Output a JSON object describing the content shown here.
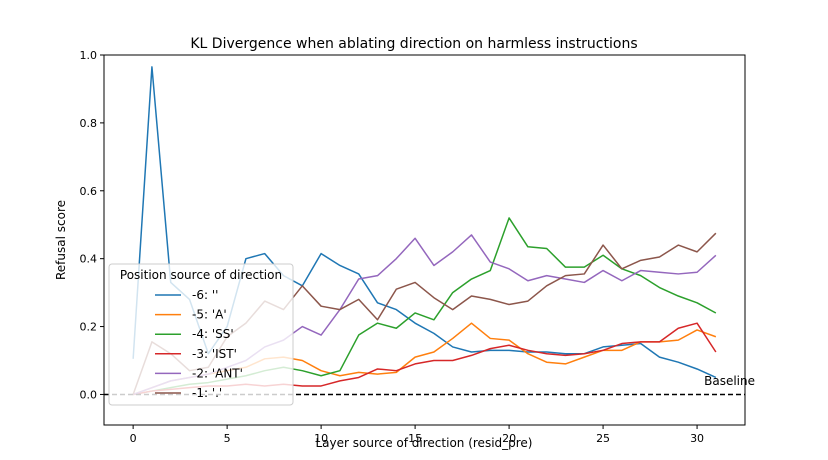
{
  "chart_data": {
    "type": "line",
    "title": "KL Divergence when ablating direction on harmless instructions",
    "xlabel": "Layer source of direction (resid_pre)",
    "ylabel": "Refusal score",
    "xlim": [
      -1.55,
      32.55
    ],
    "ylim": [
      -0.09,
      1.0
    ],
    "xticks": [
      0,
      5,
      10,
      15,
      20,
      25,
      30
    ],
    "xtick_labels": [
      "0",
      "5",
      "10",
      "15",
      "20",
      "25",
      "30"
    ],
    "yticks": [
      0.0,
      0.2,
      0.4,
      0.6,
      0.8,
      1.0
    ],
    "ytick_labels": [
      "0.0",
      "0.2",
      "0.4",
      "0.6",
      "0.8",
      "1.0"
    ],
    "grid": false,
    "legend": {
      "title": "Position source of direction",
      "placement": "lower-left"
    },
    "baseline": {
      "value": 0.0,
      "label": "Baseline",
      "style": "dashed",
      "color": "#000000"
    },
    "x": [
      0,
      1,
      2,
      3,
      4,
      5,
      6,
      7,
      8,
      9,
      10,
      11,
      12,
      13,
      14,
      15,
      16,
      17,
      18,
      19,
      20,
      21,
      22,
      23,
      24,
      25,
      26,
      27,
      28,
      29,
      30,
      31
    ],
    "series": [
      {
        "name": "-6: ''",
        "color": "#1f77b4",
        "values": [
          0.105,
          0.965,
          0.33,
          0.28,
          0.12,
          0.2,
          0.4,
          0.415,
          0.35,
          0.32,
          0.415,
          0.38,
          0.355,
          0.27,
          0.25,
          0.21,
          0.18,
          0.14,
          0.125,
          0.13,
          0.13,
          0.125,
          0.125,
          0.12,
          0.12,
          0.14,
          0.145,
          0.15,
          0.11,
          0.095,
          0.075,
          0.05
        ]
      },
      {
        "name": "-5: 'A'",
        "color": "#ff7f0e",
        "values": [
          0.0,
          0.02,
          0.04,
          0.05,
          0.06,
          0.07,
          0.08,
          0.105,
          0.11,
          0.1,
          0.07,
          0.055,
          0.065,
          0.06,
          0.065,
          0.11,
          0.125,
          0.165,
          0.21,
          0.165,
          0.16,
          0.12,
          0.095,
          0.09,
          0.11,
          0.13,
          0.13,
          0.155,
          0.155,
          0.16,
          0.19,
          0.17
        ]
      },
      {
        "name": "-4: 'SS'",
        "color": "#2ca02c",
        "values": [
          0.0,
          0.01,
          0.02,
          0.03,
          0.035,
          0.045,
          0.055,
          0.07,
          0.08,
          0.07,
          0.055,
          0.07,
          0.175,
          0.21,
          0.195,
          0.24,
          0.22,
          0.3,
          0.34,
          0.365,
          0.52,
          0.435,
          0.43,
          0.375,
          0.375,
          0.41,
          0.37,
          0.35,
          0.315,
          0.29,
          0.27,
          0.24
        ]
      },
      {
        "name": "-3: 'IST'",
        "color": "#d62728",
        "values": [
          0.0,
          0.01,
          0.015,
          0.02,
          0.025,
          0.025,
          0.03,
          0.025,
          0.03,
          0.025,
          0.025,
          0.04,
          0.05,
          0.075,
          0.07,
          0.09,
          0.1,
          0.1,
          0.115,
          0.135,
          0.145,
          0.13,
          0.12,
          0.115,
          0.12,
          0.13,
          0.15,
          0.155,
          0.155,
          0.195,
          0.21,
          0.125
        ]
      },
      {
        "name": "-2: 'ANT'",
        "color": "#9467bd",
        "values": [
          0.0,
          0.02,
          0.04,
          0.05,
          0.06,
          0.08,
          0.1,
          0.14,
          0.16,
          0.2,
          0.175,
          0.25,
          0.34,
          0.35,
          0.4,
          0.46,
          0.38,
          0.42,
          0.47,
          0.39,
          0.37,
          0.335,
          0.35,
          0.34,
          0.33,
          0.365,
          0.335,
          0.365,
          0.36,
          0.355,
          0.36,
          0.41
        ]
      },
      {
        "name": "-1: '.'",
        "color": "#8c564b",
        "values": [
          0.0,
          0.155,
          0.12,
          0.07,
          0.08,
          0.17,
          0.21,
          0.275,
          0.25,
          0.32,
          0.26,
          0.25,
          0.28,
          0.22,
          0.31,
          0.33,
          0.285,
          0.25,
          0.29,
          0.28,
          0.265,
          0.275,
          0.32,
          0.35,
          0.355,
          0.44,
          0.37,
          0.395,
          0.405,
          0.44,
          0.42,
          0.475
        ]
      }
    ]
  }
}
